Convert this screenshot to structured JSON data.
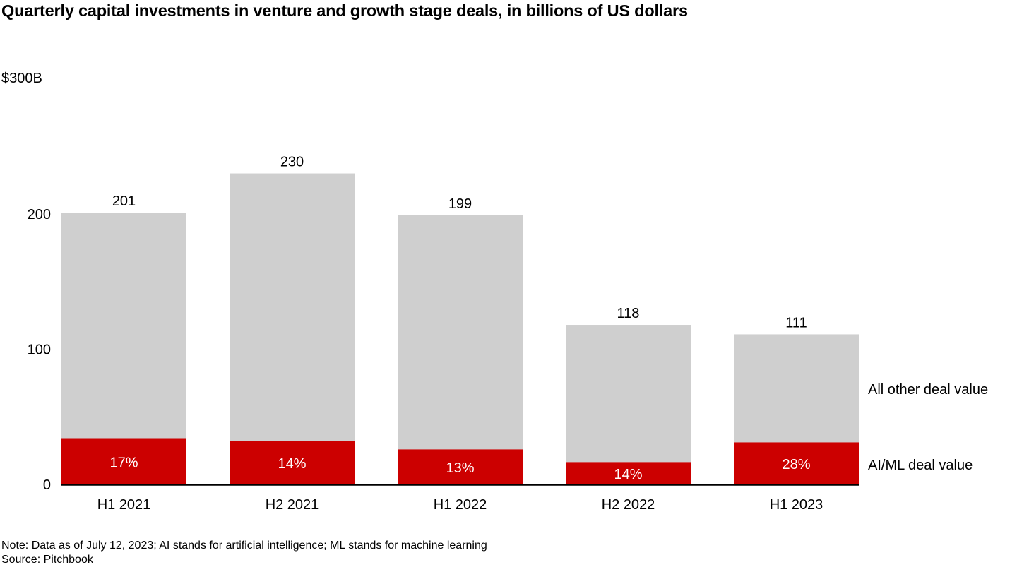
{
  "chart_data": {
    "type": "bar",
    "stacked": true,
    "title": "Quarterly capital investments in venture and growth stage deals, in billions of US dollars",
    "ylabel": "$300B",
    "xlabel": "",
    "ylim": [
      0,
      300
    ],
    "yticks": [
      {
        "value": 0,
        "label": "0"
      },
      {
        "value": 100,
        "label": "100"
      },
      {
        "value": 200,
        "label": "200"
      },
      {
        "value": 300,
        "label": "$300B"
      }
    ],
    "grid": false,
    "categories": [
      "H1 2021",
      "H2 2021",
      "H1 2022",
      "H2 2022",
      "H1 2023"
    ],
    "totals": [
      201,
      230,
      199,
      118,
      111
    ],
    "total_labels": [
      "201",
      "230",
      "199",
      "118",
      "111"
    ],
    "ai_ml_share_pct": [
      17,
      14,
      13,
      14,
      28
    ],
    "ai_ml_share_labels": [
      "17%",
      "14%",
      "13%",
      "14%",
      "28%"
    ],
    "series": [
      {
        "name": "AI/ML deal value",
        "color": "#cc0000",
        "values": [
          34.2,
          32.2,
          25.9,
          16.5,
          31.1
        ]
      },
      {
        "name": "All other deal value",
        "color": "#cfcfcf",
        "values": [
          166.8,
          197.8,
          173.1,
          101.5,
          79.9
        ]
      }
    ],
    "legend": {
      "placement": "right",
      "entries": [
        "All other deal value",
        "AI/ML deal value"
      ]
    }
  },
  "footer": {
    "note": "Note: Data as of July 12, 2023; AI stands for artificial intelligence; ML stands for machine learning",
    "source": "Source: Pitchbook"
  },
  "colors": {
    "ai_ml": "#cc0000",
    "other": "#cfcfcf",
    "axis": "#000000",
    "label_inside": "#ffffff"
  }
}
